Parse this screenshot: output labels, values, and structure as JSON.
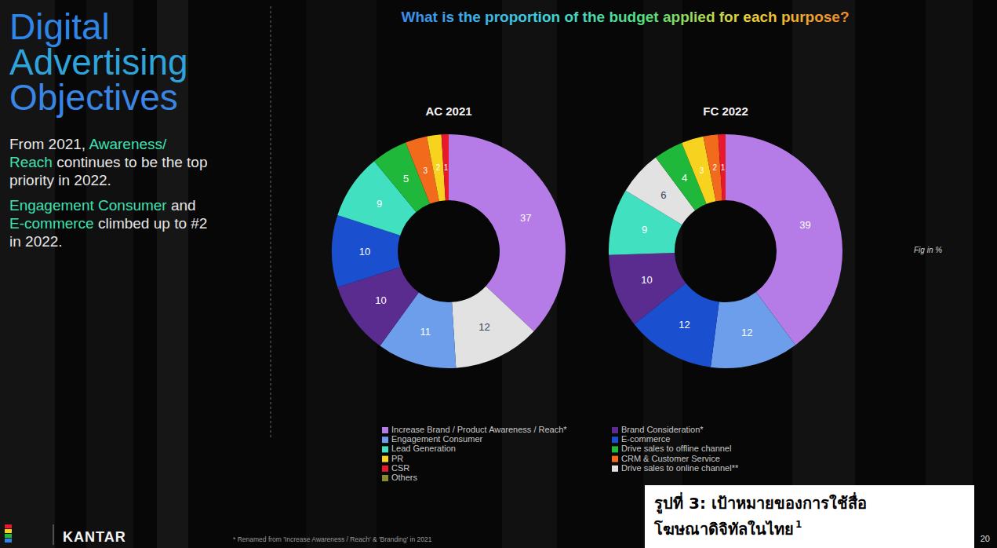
{
  "slide": {
    "title": [
      {
        "text": "Digital",
        "color": "#2f86e6"
      },
      {
        "text": "Advertising",
        "color": "#2ea3dc"
      },
      {
        "text": "Objectives",
        "color": "#3a86e4"
      }
    ],
    "paragraphs": [
      [
        {
          "text": "From 2021, ",
          "color": "#e6e6e6"
        },
        {
          "text": "Awareness/ Reach",
          "color": "#3fe0b2"
        },
        {
          "text": " continues to be the top priority in 2022.",
          "color": "#e6e6e6"
        }
      ],
      [
        {
          "text": "Engagement Consumer",
          "color": "#3fe0b2"
        },
        {
          "text": " and ",
          "color": "#e6e6e6"
        },
        {
          "text": "E-commerce",
          "color": "#3fe0b2"
        },
        {
          "text": " climbed up to #2 in 2022.",
          "color": "#e6e6e6"
        }
      ]
    ],
    "question": "What is the proportion of the budget applied for each purpose?",
    "fig_note": "Fig in %",
    "footnote": "* Renamed from 'Increase Awareness / Reach' & 'Branding' in 2021",
    "logo": "KANTAR",
    "page_number": "20",
    "caption": [
      "รูปที่ 3: เป้าหมายของการใช้สื่อ",
      "โฆษณาดิจิทัลในไทย"
    ],
    "caption_note": "1"
  },
  "chart_data": [
    {
      "type": "pie",
      "title": "AC 2021",
      "categories": [
        "Increase Brand / Product Awareness / Reach*",
        "Drive sales to online channel**",
        "Engagement Consumer",
        "Brand Consideration*",
        "E-commerce",
        "Lead Generation",
        "Drive sales to offline channel",
        "CRM & Customer Service",
        "PR",
        "CSR"
      ],
      "values": [
        37,
        12,
        11,
        10,
        10,
        9,
        5,
        3,
        2,
        1
      ],
      "colors": [
        "#b57be6",
        "#e2e2e2",
        "#6d9eeb",
        "#5b2c8f",
        "#1a4fd0",
        "#40e0c0",
        "#1fb83a",
        "#f26b1d",
        "#f7d21e",
        "#e8192c"
      ],
      "data_labels": true
    },
    {
      "type": "pie",
      "title": "FC 2022",
      "categories": [
        "Increase Brand / Product Awareness / Reach*",
        "Engagement Consumer",
        "E-commerce",
        "Brand Consideration*",
        "Lead Generation",
        "Drive sales to online channel**",
        "Drive sales to offline channel",
        "PR",
        "CRM & Customer Service",
        "CSR",
        "Others"
      ],
      "values": [
        39,
        12,
        12,
        10,
        9,
        6,
        4,
        3,
        2,
        1,
        0
      ],
      "colors": [
        "#b57be6",
        "#6d9eeb",
        "#1a4fd0",
        "#5b2c8f",
        "#40e0c0",
        "#e2e2e2",
        "#1fb83a",
        "#f7d21e",
        "#f26b1d",
        "#e8192c",
        "#8b8b2a"
      ],
      "data_labels": true,
      "legend": "bottom"
    }
  ]
}
